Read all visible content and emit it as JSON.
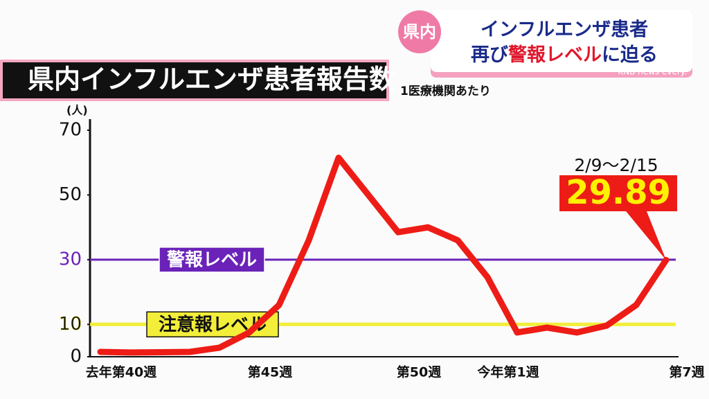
{
  "chart_data": {
    "type": "line",
    "title": "県内インフルエンザ患者報告数",
    "subtitle": "1医療機関あたり",
    "y_unit": "(人)",
    "categories": [
      "去年第40週",
      null,
      null,
      null,
      null,
      "第45週",
      null,
      null,
      null,
      null,
      "第50週",
      null,
      null,
      "今年第1週",
      null,
      null,
      null,
      null,
      null,
      "第7週"
    ],
    "series": [
      {
        "color": "#ee1c16",
        "values": [
          1.5,
          1.3,
          1.4,
          1.5,
          2.8,
          7.5,
          16,
          36,
          61.5,
          50,
          38.5,
          40,
          36,
          24.6,
          7.5,
          9,
          7.5,
          9.6,
          16,
          29.89
        ],
        "value_labels": [
          null,
          null,
          null,
          null,
          null,
          null,
          null,
          null,
          null,
          null,
          null,
          null,
          null,
          null,
          null,
          null,
          null,
          null,
          null,
          "29.89"
        ]
      }
    ],
    "callout_date": "2/9〜2/15",
    "ylim": [
      0,
      70
    ],
    "yticks": [
      0,
      10,
      30,
      50,
      70
    ],
    "reference_lines": [
      {
        "value": 30,
        "label": "警報レベル",
        "color": "#6a22b8"
      },
      {
        "value": 10,
        "label": "注意報レベル",
        "color": "#f2ee3a"
      }
    ]
  },
  "banner": {
    "tag": "県内",
    "line1": "インフルエンザ患者",
    "line2_parts": [
      "再び",
      "警報レベル",
      "に迫る"
    ],
    "brand": "KNB news every."
  }
}
